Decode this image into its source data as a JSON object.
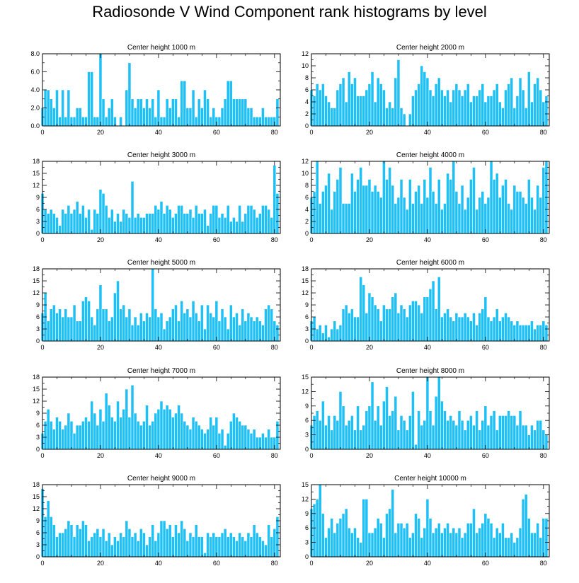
{
  "title": "Radiosonde V Wind Component rank histograms by level",
  "chart_data": [
    {
      "type": "bar",
      "title": "Center height 1000 m",
      "xlim": [
        0,
        82
      ],
      "ylim": [
        0,
        8
      ],
      "xticks": [
        0,
        20,
        40,
        60,
        80
      ],
      "yticks": [
        0,
        2,
        4,
        6,
        8
      ],
      "ytick_labels": [
        "0.0",
        "2.0",
        "4.0",
        "6.0",
        "8.0"
      ],
      "values": [
        2,
        4,
        4,
        3,
        2,
        4,
        1,
        4,
        1,
        4,
        1,
        1,
        2,
        2,
        1,
        1,
        6,
        6,
        1,
        1,
        8,
        3,
        1,
        2,
        3,
        1,
        0,
        1,
        0,
        4,
        7,
        3,
        2,
        3,
        3,
        2,
        3,
        2,
        3,
        1,
        4,
        1,
        1,
        3,
        2,
        3,
        3,
        1,
        5,
        5,
        2,
        2,
        4,
        1,
        3,
        2,
        4,
        3,
        1,
        2,
        1,
        1,
        2,
        3,
        5,
        5,
        3,
        3,
        3,
        3,
        3,
        2,
        2,
        1,
        1,
        1,
        2,
        1,
        1,
        1,
        1,
        3
      ]
    },
    {
      "type": "bar",
      "title": "Center height 2000 m",
      "xlim": [
        0,
        82
      ],
      "ylim": [
        0,
        12
      ],
      "xticks": [
        0,
        20,
        40,
        60,
        80
      ],
      "yticks": [
        0,
        2,
        4,
        6,
        8,
        10,
        12
      ],
      "ytick_labels": [
        "0",
        "2",
        "4",
        "6",
        "8",
        "10",
        "12"
      ],
      "values": [
        6,
        5,
        7,
        6,
        7,
        5,
        4,
        3,
        3,
        6,
        7,
        8,
        4,
        9,
        7,
        8,
        5,
        5,
        5,
        6,
        7,
        9,
        4,
        8,
        7,
        6,
        3,
        4,
        3,
        8,
        11,
        3,
        2,
        0,
        2,
        5,
        6,
        7,
        10,
        9,
        8,
        6,
        5,
        7,
        8,
        6,
        5,
        6,
        4,
        6,
        7,
        6,
        5,
        6,
        7,
        4,
        5,
        5,
        6,
        7,
        4,
        5,
        5,
        6,
        7,
        4,
        3,
        6,
        7,
        8,
        3,
        5,
        8,
        6,
        3,
        9,
        4,
        7,
        8,
        6,
        4,
        5
      ]
    },
    {
      "type": "bar",
      "title": "Center height 3000 m",
      "xlim": [
        0,
        82
      ],
      "ylim": [
        0,
        18
      ],
      "xticks": [
        0,
        20,
        40,
        60,
        80
      ],
      "yticks": [
        0,
        3,
        6,
        9,
        12,
        15,
        18
      ],
      "ytick_labels": [
        "0",
        "3",
        "6",
        "9",
        "12",
        "15",
        "18"
      ],
      "values": [
        10,
        6,
        5,
        6,
        5,
        4,
        2,
        6,
        5,
        7,
        5,
        6,
        8,
        5,
        7,
        4,
        6,
        1,
        6,
        5,
        11,
        10,
        7,
        4,
        6,
        3,
        5,
        3,
        6,
        5,
        4,
        13,
        4,
        5,
        4,
        4,
        5,
        5,
        5,
        7,
        6,
        8,
        5,
        7,
        6,
        4,
        5,
        7,
        7,
        5,
        5,
        6,
        4,
        7,
        5,
        5,
        6,
        2,
        5,
        7,
        7,
        4,
        5,
        4,
        7,
        3,
        4,
        3,
        7,
        3,
        5,
        7,
        7,
        6,
        4,
        5,
        7,
        7,
        6,
        4,
        17,
        10
      ]
    },
    {
      "type": "bar",
      "title": "Center height 4000 m",
      "xlim": [
        0,
        82
      ],
      "ylim": [
        0,
        12
      ],
      "xticks": [
        0,
        20,
        40,
        60,
        80
      ],
      "yticks": [
        0,
        2,
        4,
        6,
        8,
        10,
        12
      ],
      "ytick_labels": [
        "0",
        "2",
        "4",
        "6",
        "8",
        "10",
        "12"
      ],
      "values": [
        6,
        7,
        12,
        5,
        7,
        8,
        10,
        4,
        7,
        9,
        11,
        5,
        5,
        5,
        10,
        7,
        9,
        11,
        8,
        8,
        9,
        7,
        8,
        7,
        6,
        12,
        9,
        11,
        8,
        5,
        6,
        9,
        6,
        4,
        9,
        5,
        7,
        8,
        5,
        9,
        6,
        11,
        7,
        5,
        9,
        4,
        5,
        10,
        9,
        12,
        7,
        5,
        8,
        4,
        6,
        9,
        11,
        4,
        6,
        7,
        5,
        6,
        12,
        9,
        10,
        6,
        8,
        9,
        5,
        4,
        8,
        7,
        7,
        6,
        5,
        9,
        6,
        4,
        8,
        6,
        11,
        12
      ]
    },
    {
      "type": "bar",
      "title": "Center height 5000 m",
      "xlim": [
        0,
        82
      ],
      "ylim": [
        0,
        18
      ],
      "xticks": [
        0,
        20,
        40,
        60,
        80
      ],
      "yticks": [
        0,
        3,
        6,
        9,
        12,
        15,
        18
      ],
      "ytick_labels": [
        "0",
        "3",
        "6",
        "9",
        "12",
        "15",
        "18"
      ],
      "values": [
        7,
        12,
        5,
        8,
        9,
        7,
        8,
        6,
        8,
        6,
        6,
        9,
        5,
        5,
        10,
        11,
        10,
        6,
        4,
        8,
        14,
        8,
        8,
        5,
        6,
        12,
        15,
        8,
        9,
        6,
        8,
        4,
        6,
        4,
        7,
        5,
        7,
        6,
        19,
        8,
        6,
        7,
        3,
        5,
        6,
        8,
        9,
        5,
        10,
        7,
        8,
        6,
        10,
        7,
        5,
        9,
        3,
        9,
        7,
        6,
        10,
        5,
        8,
        6,
        3,
        9,
        6,
        7,
        4,
        8,
        5,
        7,
        6,
        5,
        6,
        5,
        4,
        8,
        9,
        8,
        5,
        4
      ]
    },
    {
      "type": "bar",
      "title": "Center height 6000 m",
      "xlim": [
        0,
        82
      ],
      "ylim": [
        0,
        18
      ],
      "xticks": [
        0,
        20,
        40,
        60,
        80
      ],
      "yticks": [
        0,
        3,
        6,
        9,
        12,
        15,
        18
      ],
      "ytick_labels": [
        "0",
        "3",
        "6",
        "9",
        "12",
        "15",
        "18"
      ],
      "values": [
        5,
        6,
        3,
        4,
        2,
        4,
        1,
        3,
        5,
        3,
        4,
        8,
        9,
        7,
        8,
        6,
        6,
        16,
        14,
        7,
        12,
        11,
        9,
        8,
        5,
        9,
        8,
        8,
        11,
        12,
        7,
        9,
        8,
        6,
        9,
        10,
        10,
        9,
        7,
        11,
        11,
        13,
        15,
        8,
        16,
        6,
        7,
        8,
        6,
        5,
        7,
        6,
        6,
        7,
        6,
        5,
        7,
        4,
        7,
        8,
        11,
        6,
        5,
        6,
        8,
        5,
        6,
        7,
        6,
        5,
        4,
        5,
        4,
        4,
        4,
        4,
        5,
        3,
        4,
        4,
        5,
        4
      ]
    },
    {
      "type": "bar",
      "title": "Center height 7000 m",
      "xlim": [
        0,
        82
      ],
      "ylim": [
        0,
        18
      ],
      "xticks": [
        0,
        20,
        40,
        60,
        80
      ],
      "yticks": [
        0,
        3,
        6,
        9,
        12,
        15,
        18
      ],
      "ytick_labels": [
        "0",
        "3",
        "6",
        "9",
        "12",
        "15",
        "18"
      ],
      "values": [
        4,
        7,
        10,
        7,
        5,
        8,
        7,
        5,
        6,
        9,
        7,
        4,
        6,
        6,
        7,
        8,
        7,
        12,
        9,
        6,
        10,
        7,
        14,
        11,
        8,
        7,
        12,
        8,
        10,
        15,
        8,
        16,
        9,
        7,
        6,
        7,
        11,
        6,
        7,
        9,
        10,
        12,
        10,
        11,
        10,
        8,
        9,
        11,
        9,
        7,
        6,
        5,
        8,
        7,
        6,
        5,
        4,
        5,
        8,
        6,
        8,
        4,
        5,
        1,
        4,
        7,
        9,
        8,
        7,
        6,
        6,
        5,
        4,
        5,
        3,
        3,
        4,
        3,
        5,
        3,
        3,
        7
      ]
    },
    {
      "type": "bar",
      "title": "Center height 8000 m",
      "xlim": [
        0,
        82
      ],
      "ylim": [
        0,
        15
      ],
      "xticks": [
        0,
        20,
        40,
        60,
        80
      ],
      "yticks": [
        0,
        3,
        6,
        9,
        12,
        15
      ],
      "ytick_labels": [
        "0",
        "3",
        "6",
        "9",
        "12",
        "15"
      ],
      "values": [
        5,
        7,
        8,
        6,
        10,
        5,
        7,
        4,
        7,
        6,
        12,
        9,
        5,
        6,
        7,
        4,
        9,
        4,
        5,
        8,
        9,
        14,
        6,
        9,
        5,
        10,
        13,
        7,
        8,
        11,
        4,
        7,
        6,
        4,
        7,
        12,
        1,
        8,
        5,
        6,
        15,
        8,
        5,
        11,
        15,
        10,
        8,
        6,
        7,
        6,
        5,
        8,
        6,
        4,
        6,
        7,
        5,
        8,
        4,
        6,
        9,
        5,
        7,
        8,
        4,
        7,
        7,
        7,
        8,
        7,
        7,
        5,
        8,
        5,
        5,
        3,
        5,
        4,
        6,
        6,
        4,
        3
      ]
    },
    {
      "type": "bar",
      "title": "Center height 9000 m",
      "xlim": [
        0,
        82
      ],
      "ylim": [
        0,
        18
      ],
      "xticks": [
        0,
        20,
        40,
        60,
        80
      ],
      "yticks": [
        0,
        3,
        6,
        9,
        12,
        15,
        18
      ],
      "ytick_labels": [
        "0",
        "3",
        "6",
        "9",
        "12",
        "15",
        "18"
      ],
      "values": [
        17,
        10,
        14,
        10,
        8,
        5,
        6,
        6,
        7,
        9,
        8,
        5,
        8,
        7,
        9,
        8,
        4,
        5,
        6,
        7,
        5,
        7,
        4,
        6,
        3,
        5,
        4,
        6,
        5,
        9,
        7,
        5,
        6,
        4,
        7,
        6,
        3,
        5,
        8,
        4,
        6,
        9,
        9,
        7,
        8,
        5,
        8,
        6,
        9,
        7,
        4,
        6,
        5,
        8,
        5,
        5,
        1,
        6,
        5,
        6,
        5,
        5,
        6,
        7,
        5,
        6,
        5,
        4,
        6,
        5,
        4,
        6,
        5,
        8,
        6,
        5,
        4,
        3,
        8,
        5,
        7,
        10
      ]
    },
    {
      "type": "bar",
      "title": "Center height 10000 m",
      "xlim": [
        0,
        82
      ],
      "ylim": [
        0,
        15
      ],
      "xticks": [
        0,
        20,
        40,
        60,
        80
      ],
      "yticks": [
        0,
        3,
        6,
        9,
        12,
        15
      ],
      "ytick_labels": [
        "0",
        "3",
        "6",
        "9",
        "12",
        "15"
      ],
      "values": [
        10,
        11,
        12,
        15,
        9,
        4,
        6,
        8,
        5,
        7,
        8,
        9,
        10,
        6,
        5,
        6,
        4,
        3,
        12,
        12,
        5,
        5,
        6,
        8,
        7,
        4,
        9,
        10,
        14,
        5,
        7,
        7,
        6,
        7,
        4,
        5,
        9,
        8,
        4,
        6,
        12,
        8,
        5,
        6,
        7,
        5,
        6,
        7,
        5,
        6,
        5,
        6,
        4,
        5,
        7,
        7,
        10,
        5,
        6,
        7,
        9,
        8,
        7,
        4,
        6,
        5,
        7,
        4,
        4,
        5,
        3,
        4,
        6,
        12,
        13,
        8,
        5,
        5,
        7,
        4,
        8,
        8
      ]
    }
  ]
}
